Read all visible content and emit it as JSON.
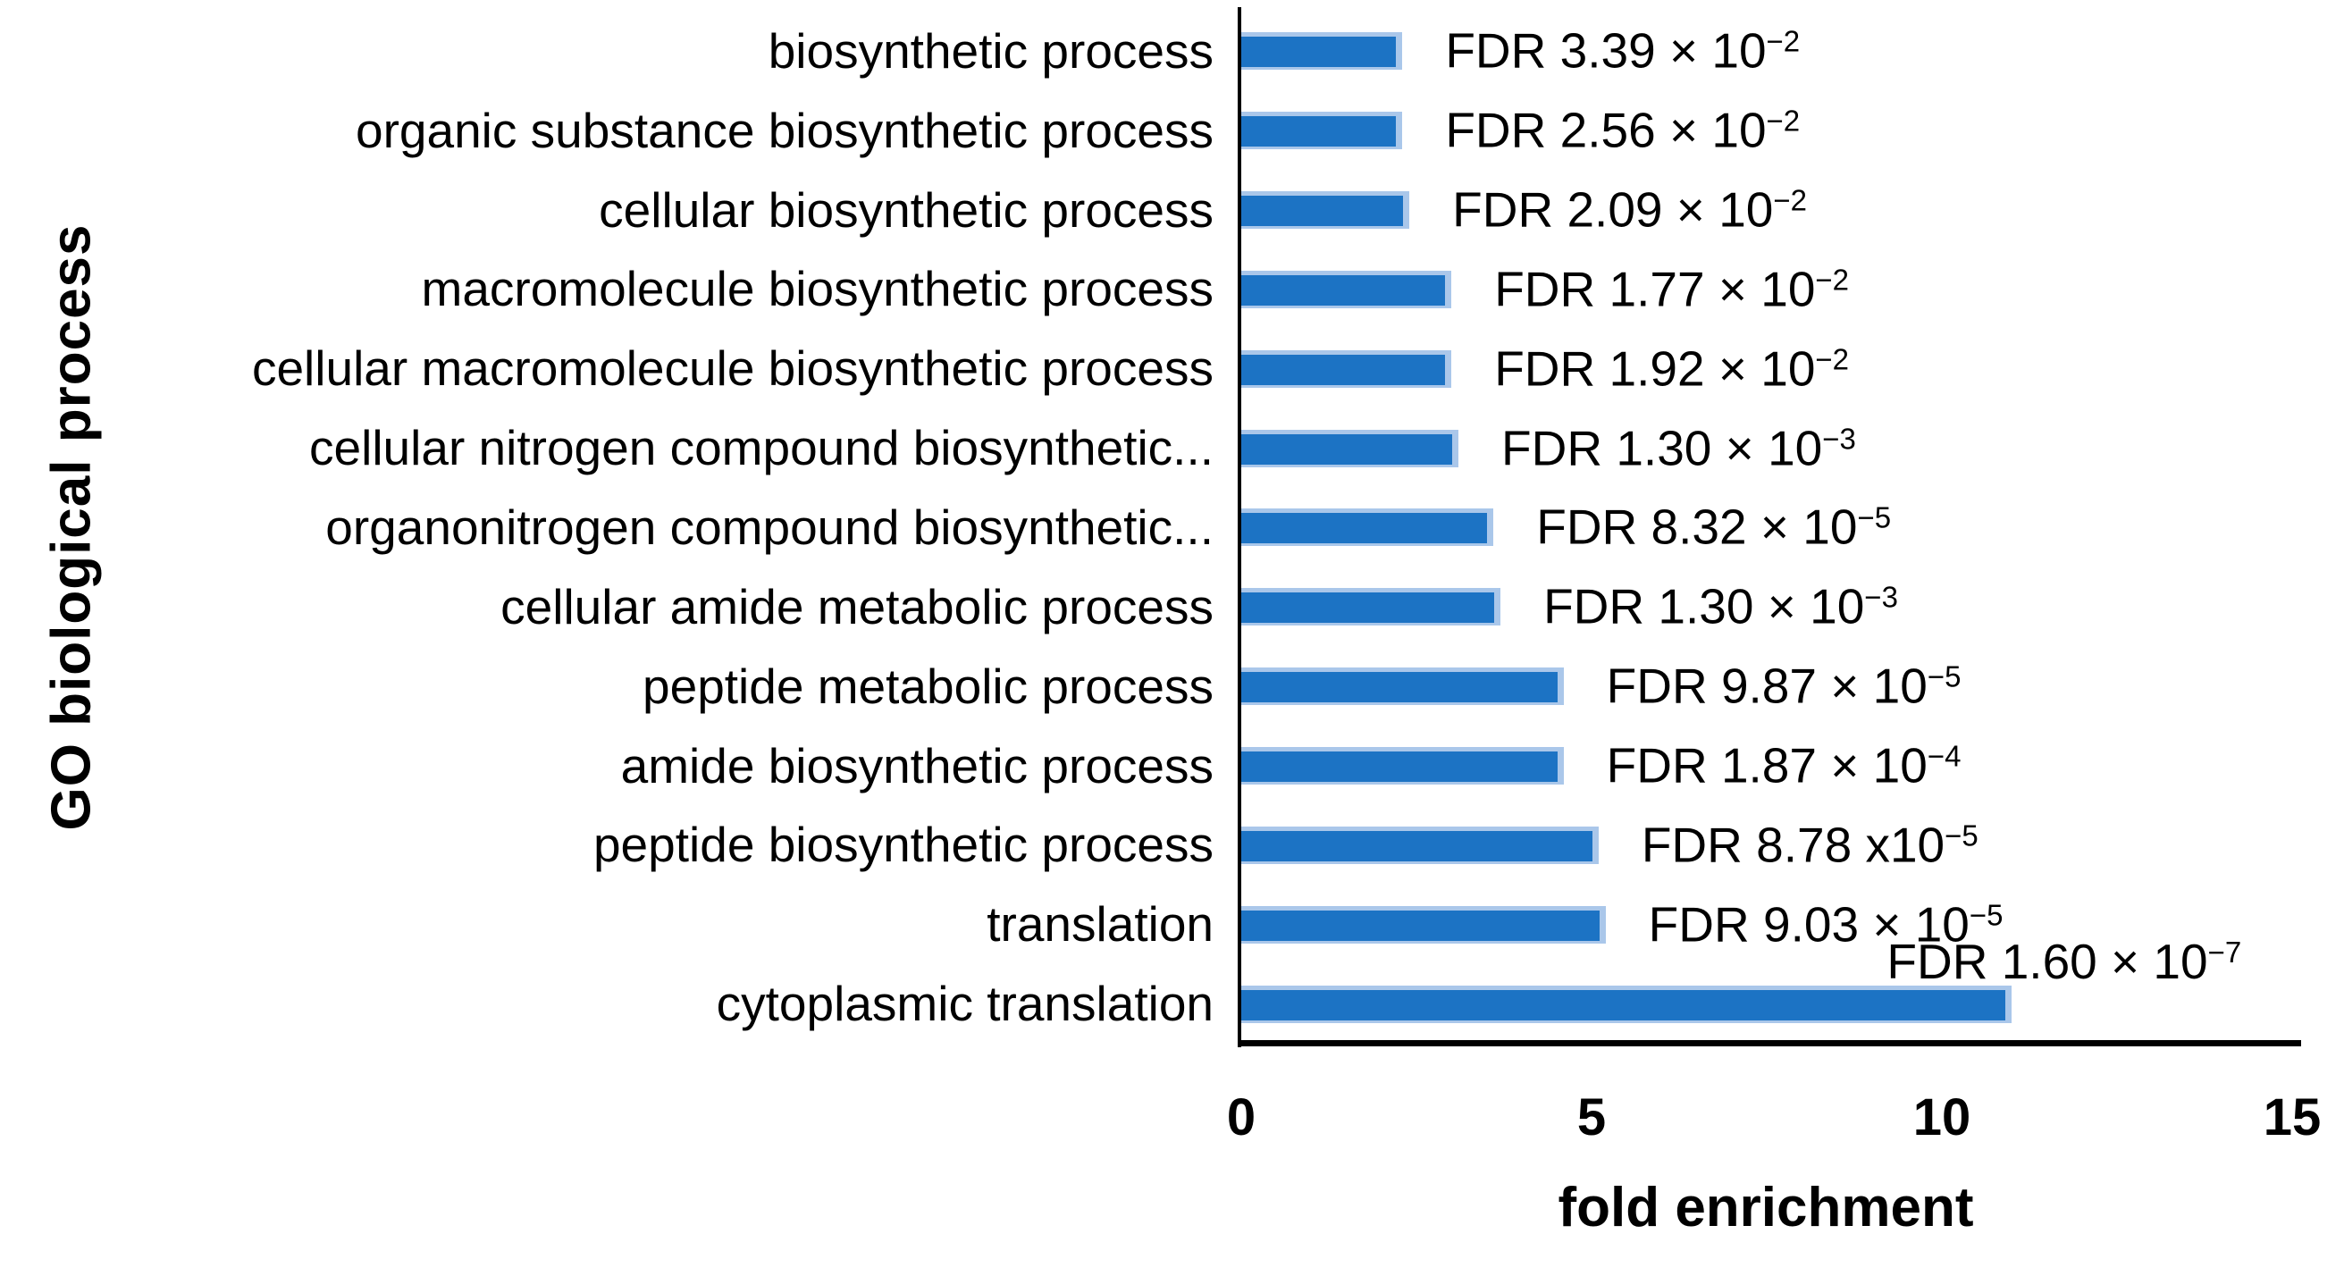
{
  "chart_data": {
    "type": "bar",
    "orientation": "horizontal",
    "title": "",
    "xlabel": "fold enrichment",
    "ylabel": "GO biological process",
    "xlim": [
      0,
      15
    ],
    "xticks": [
      "0",
      "5",
      "10",
      "15"
    ],
    "grid": false,
    "legend": null,
    "bar_color": "#1c73c4",
    "bar_highlight_color": "#aac7ea",
    "axis_color": "#000000",
    "rows": [
      {
        "category": "biosynthetic process",
        "fold_enrichment": 2.3,
        "fdr_label": "FDR 3.39 × 10",
        "fdr_exponent": "−2"
      },
      {
        "category": "organic substance biosynthetic process",
        "fold_enrichment": 2.3,
        "fdr_label": "FDR 2.56 × 10",
        "fdr_exponent": "−2"
      },
      {
        "category": "cellular biosynthetic process",
        "fold_enrichment": 2.4,
        "fdr_label": "FDR 2.09 × 10",
        "fdr_exponent": "−2"
      },
      {
        "category": "macromolecule biosynthetic process",
        "fold_enrichment": 3.0,
        "fdr_label": "FDR 1.77 × 10",
        "fdr_exponent": "−2"
      },
      {
        "category": "cellular macromolecule biosynthetic process",
        "fold_enrichment": 3.0,
        "fdr_label": "FDR 1.92 × 10",
        "fdr_exponent": "−2"
      },
      {
        "category": "cellular nitrogen compound biosynthetic...",
        "fold_enrichment": 3.1,
        "fdr_label": "FDR 1.30 × 10",
        "fdr_exponent": "−3"
      },
      {
        "category": "organonitrogen compound biosynthetic...",
        "fold_enrichment": 3.6,
        "fdr_label": "FDR 8.32 × 10",
        "fdr_exponent": "−5"
      },
      {
        "category": "cellular amide metabolic process",
        "fold_enrichment": 3.7,
        "fdr_label": "FDR 1.30 × 10",
        "fdr_exponent": "−3"
      },
      {
        "category": "peptide metabolic process",
        "fold_enrichment": 4.6,
        "fdr_label": "FDR 9.87 × 10",
        "fdr_exponent": "−5"
      },
      {
        "category": "amide biosynthetic process",
        "fold_enrichment": 4.6,
        "fdr_label": "FDR 1.87 × 10",
        "fdr_exponent": "−4"
      },
      {
        "category": "peptide biosynthetic process",
        "fold_enrichment": 5.1,
        "fdr_label": "FDR 8.78 x10",
        "fdr_exponent": "−5"
      },
      {
        "category": "translation",
        "fold_enrichment": 5.2,
        "fdr_label": "FDR 9.03 × 10",
        "fdr_exponent": "−5"
      },
      {
        "category": "cytoplasmic translation",
        "fold_enrichment": 11.0,
        "fdr_label": "FDR 1.60 × 10",
        "fdr_exponent": "−7",
        "label_position": "above"
      }
    ]
  }
}
